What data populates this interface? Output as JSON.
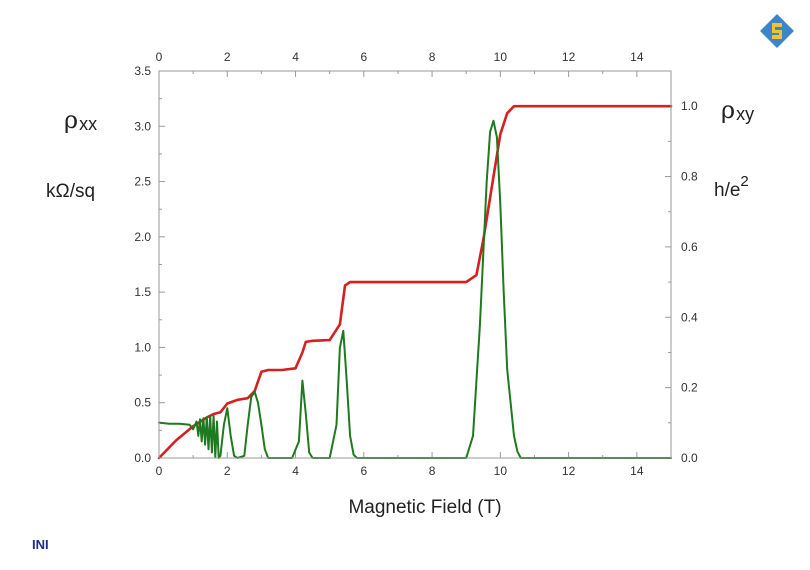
{
  "footer": {
    "label": "INI"
  },
  "chart_data": {
    "type": "line",
    "xlabel": "Magnetic Field  (T)",
    "xlim": [
      0,
      15
    ],
    "x_ticks": [
      0,
      2,
      4,
      6,
      8,
      10,
      12,
      14
    ],
    "left_axis": {
      "label_symbol": "ρ",
      "label_sub": "xx",
      "unit": "kΩ/sq",
      "ylim": [
        0,
        3.5
      ],
      "ticks": [
        "0.0",
        "0.5",
        "1.0",
        "1.5",
        "2.0",
        "2.5",
        "3.0",
        "3.5"
      ]
    },
    "right_axis": {
      "label_symbol": "ρ",
      "label_sub": "xy",
      "unit_base": "h/e",
      "unit_sup": "2",
      "ylim": [
        0,
        1.1
      ],
      "ticks": [
        "0.0",
        "0.2",
        "0.4",
        "0.6",
        "0.8",
        "1.0"
      ]
    },
    "colors": {
      "rho_xy": "#d42020",
      "rho_xx": "#1e7a1e"
    },
    "series": [
      {
        "key": "rho_xy",
        "axis": "right",
        "x": [
          0,
          0.5,
          1.0,
          1.4,
          1.6,
          1.8,
          2.0,
          2.3,
          2.6,
          2.8,
          3.0,
          3.2,
          3.6,
          4.0,
          4.2,
          4.3,
          4.5,
          5.0,
          5.3,
          5.45,
          5.6,
          6.0,
          7.0,
          8.0,
          9.0,
          9.3,
          9.5,
          9.8,
          10.0,
          10.2,
          10.4,
          11.0,
          12.0,
          13.0,
          14.0,
          15.0
        ],
        "y": [
          0.0,
          0.05,
          0.09,
          0.115,
          0.125,
          0.13,
          0.155,
          0.165,
          0.17,
          0.19,
          0.245,
          0.25,
          0.25,
          0.255,
          0.3,
          0.33,
          0.333,
          0.335,
          0.38,
          0.49,
          0.5,
          0.5,
          0.5,
          0.5,
          0.5,
          0.52,
          0.62,
          0.8,
          0.92,
          0.98,
          1.0,
          1.0,
          1.0,
          1.0,
          1.0,
          1.0
        ]
      },
      {
        "key": "rho_xx",
        "axis": "left",
        "x": [
          0,
          0.3,
          0.6,
          0.9,
          1.0,
          1.1,
          1.15,
          1.2,
          1.25,
          1.3,
          1.35,
          1.4,
          1.45,
          1.5,
          1.55,
          1.6,
          1.65,
          1.7,
          1.75,
          1.8,
          1.9,
          2.0,
          2.1,
          2.2,
          2.3,
          2.5,
          2.6,
          2.7,
          2.8,
          2.9,
          3.0,
          3.1,
          3.2,
          3.4,
          3.9,
          4.1,
          4.2,
          4.3,
          4.4,
          4.5,
          4.7,
          5.0,
          5.2,
          5.3,
          5.4,
          5.5,
          5.6,
          5.7,
          5.8,
          5.9,
          6.0,
          9.0,
          9.2,
          9.4,
          9.6,
          9.7,
          9.8,
          9.9,
          10.0,
          10.1,
          10.2,
          10.4,
          10.5,
          10.6,
          11.0,
          15.0
        ],
        "y": [
          0.32,
          0.31,
          0.31,
          0.3,
          0.26,
          0.33,
          0.2,
          0.35,
          0.15,
          0.36,
          0.12,
          0.37,
          0.08,
          0.38,
          0.05,
          0.38,
          0.01,
          0.33,
          0.0,
          0.02,
          0.3,
          0.45,
          0.2,
          0.02,
          0.0,
          0.02,
          0.3,
          0.55,
          0.6,
          0.5,
          0.3,
          0.08,
          0.0,
          0.0,
          0.0,
          0.15,
          0.7,
          0.4,
          0.05,
          0.0,
          0.0,
          0.0,
          0.3,
          1.0,
          1.15,
          0.7,
          0.2,
          0.03,
          0.0,
          0.0,
          0.0,
          0.0,
          0.2,
          1.2,
          2.5,
          2.95,
          3.05,
          2.9,
          2.3,
          1.5,
          0.8,
          0.2,
          0.06,
          0.0,
          0.0,
          0.0
        ]
      }
    ]
  }
}
